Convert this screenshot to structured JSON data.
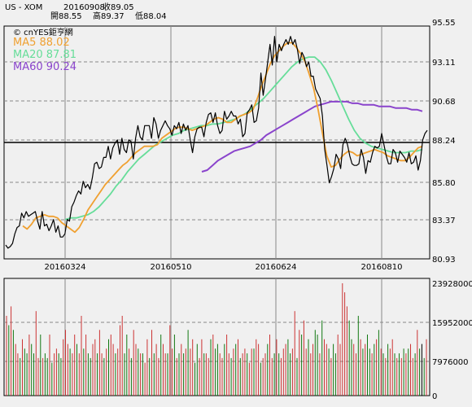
{
  "header": {
    "symbol": "US - XOM",
    "date": "20160908",
    "close_label": "收89.05",
    "open_label": "開88.55",
    "high_label": "高89.37",
    "low_label": "低88.04"
  },
  "brand": "© cnYES鉅亨網",
  "colors": {
    "price": "#000000",
    "ma5": "#f0a030",
    "ma20": "#66dd99",
    "ma60": "#8a44cc",
    "vol_up": "#cc3333",
    "vol_down": "#117711",
    "vol_last": "#000000",
    "grid": "#888888",
    "background": "#f0f0f0"
  },
  "chart_data": [
    {
      "type": "line",
      "title": "",
      "x_tick_labels": [
        "20160324",
        "20160510",
        "20160624",
        "20160810"
      ],
      "ylim": [
        80.93,
        95.55
      ],
      "y_ticks": [
        "95.55",
        "93.11",
        "90.68",
        "88.24",
        "85.80",
        "83.37",
        "80.93"
      ],
      "legend": [
        {
          "name": "MA5",
          "value": "88.02",
          "text": "MA5 88.02"
        },
        {
          "name": "MA20",
          "value": "87.81",
          "text": "MA20 87.81"
        },
        {
          "name": "MA60",
          "value": "90.24",
          "text": "MA60 90.24"
        }
      ],
      "reference_line": 88.24,
      "price_series": [
        81.8,
        81.6,
        81.7,
        81.9,
        82.5,
        82.9,
        83.0,
        83.8,
        83.5,
        83.9,
        83.6,
        83.7,
        83.8,
        83.9,
        83.3,
        82.8,
        83.9,
        83.0,
        83.1,
        82.7,
        83.0,
        83.4,
        82.6,
        83.0,
        82.3,
        82.3,
        82.5,
        83.4,
        83.3,
        84.2,
        84.5,
        84.9,
        85.2,
        85.0,
        85.8,
        85.4,
        85.6,
        85.3,
        86.0,
        86.9,
        87.0,
        86.6,
        86.7,
        87.3,
        87.3,
        88.0,
        87.2,
        87.9,
        88.2,
        88.4,
        87.5,
        88.5,
        87.8,
        87.6,
        88.4,
        88.3,
        87.2,
        88.5,
        89.3,
        88.6,
        88.4,
        89.3,
        89.3,
        89.3,
        88.5,
        89.8,
        89.4,
        88.5,
        89.0,
        89.3,
        89.6,
        89.3,
        89.1,
        88.7,
        89.3,
        89.1,
        89.5,
        88.8,
        89.4,
        89.0,
        89.3,
        88.4,
        87.6,
        88.6,
        89.1,
        89.2,
        89.2,
        88.6,
        89.5,
        90.0,
        90.1,
        89.5,
        90.1,
        89.3,
        88.8,
        89.0,
        90.2,
        89.7,
        89.9,
        90.2,
        89.9,
        89.9,
        89.4,
        89.7,
        88.6,
        88.8,
        90.1,
        90.3,
        90.6,
        89.5,
        89.6,
        90.4,
        92.6,
        91.2,
        92.2,
        93.3,
        94.4,
        93.1,
        94.9,
        93.3,
        94.4,
        94.0,
        94.4,
        94.7,
        94.4,
        94.9,
        94.4,
        94.7,
        94.1,
        93.2,
        93.9,
        93.6,
        93.0,
        93.3,
        92.4,
        92.4,
        91.6,
        91.3,
        91.0,
        89.9,
        87.8,
        86.8,
        85.7,
        86.1,
        86.6,
        87.5,
        87.2,
        86.6,
        88.1,
        88.5,
        88.1,
        87.4,
        86.9,
        86.8,
        86.8,
        86.9,
        87.8,
        87.3,
        86.3,
        87.1,
        87.0,
        87.6,
        88.0,
        87.9,
        88.0,
        88.8,
        88.1,
        87.4,
        86.9,
        86.9,
        87.8,
        87.6,
        87.0,
        87.7,
        87.5,
        87.3,
        87.0,
        87.6,
        86.9,
        87.0,
        87.4,
        86.5,
        87.1,
        88.4,
        88.8,
        89.0
      ],
      "ma5_series": [
        83.0,
        82.8,
        83.1,
        83.5,
        83.6,
        83.7,
        83.6,
        83.6,
        83.5,
        83.2,
        83.0,
        82.8,
        82.6,
        82.9,
        83.4,
        84.0,
        84.4,
        84.8,
        85.2,
        85.6,
        85.9,
        86.2,
        86.5,
        86.8,
        87.0,
        87.3,
        87.6,
        87.8,
        88.0,
        88.0,
        88.0,
        88.1,
        88.5,
        88.7,
        88.9,
        89.1,
        89.2,
        89.2,
        89.1,
        89.0,
        89.1,
        89.2,
        89.3,
        89.5,
        89.7,
        89.8,
        89.7,
        89.5,
        89.5,
        89.7,
        89.9,
        90.0,
        90.1,
        90.3,
        91.0,
        91.8,
        92.5,
        93.2,
        93.7,
        94.0,
        94.3,
        94.5,
        94.5,
        94.2,
        93.8,
        93.3,
        92.5,
        91.6,
        90.3,
        88.8,
        87.4,
        86.7,
        86.8,
        87.2,
        87.5,
        87.7,
        87.6,
        87.4,
        87.5,
        87.6,
        87.7,
        87.8,
        87.7,
        87.6,
        87.4,
        87.3,
        87.2,
        87.1,
        87.1,
        87.3,
        87.6,
        87.9,
        88.0
      ],
      "ma20_series": [
        83.4,
        83.5,
        83.5,
        83.6,
        83.7,
        83.9,
        84.2,
        84.6,
        85.0,
        85.5,
        85.9,
        86.4,
        86.8,
        87.2,
        87.5,
        87.8,
        88.1,
        88.3,
        88.5,
        88.7,
        88.8,
        89.0,
        89.1,
        89.2,
        89.3,
        89.3,
        89.4,
        89.4,
        89.5,
        89.6,
        89.7,
        89.9,
        90.1,
        90.4,
        90.7,
        91.0,
        91.4,
        91.8,
        92.2,
        92.6,
        93.0,
        93.3,
        93.5,
        93.6,
        93.6,
        93.3,
        92.8,
        92.1,
        91.3,
        90.5,
        89.7,
        89.0,
        88.5,
        88.2,
        88.0,
        87.9,
        87.8,
        87.7,
        87.6,
        87.6,
        87.6,
        87.7,
        87.7,
        87.8
      ],
      "ma60_series": [
        86.4,
        86.5,
        86.8,
        87.1,
        87.3,
        87.5,
        87.7,
        87.8,
        87.9,
        88.0,
        88.2,
        88.4,
        88.7,
        88.9,
        89.1,
        89.3,
        89.5,
        89.7,
        89.9,
        90.1,
        90.3,
        90.5,
        90.6,
        90.7,
        90.8,
        90.8,
        90.8,
        90.8,
        90.7,
        90.7,
        90.6,
        90.6,
        90.6,
        90.5,
        90.5,
        90.5,
        90.4,
        90.4,
        90.4,
        90.3,
        90.3,
        90.2
      ]
    },
    {
      "type": "bar",
      "title": "",
      "ylim": [
        0,
        23928000
      ],
      "y_ticks": [
        "23928000",
        "15952000",
        "7976000",
        "0"
      ],
      "volume_values": [
        17000000,
        15000000,
        19000000,
        14000000,
        11000000,
        9000000,
        8000000,
        12000000,
        10000000,
        9000000,
        13000000,
        11000000,
        9000000,
        18000000,
        8000000,
        13000000,
        8000000,
        9000000,
        8000000,
        13000000,
        7000000,
        9000000,
        10000000,
        9000000,
        8000000,
        12000000,
        14000000,
        11000000,
        10000000,
        9000000,
        13000000,
        11000000,
        9000000,
        17000000,
        10000000,
        13000000,
        9000000,
        8000000,
        11000000,
        12000000,
        9000000,
        14000000,
        9000000,
        8000000,
        10000000,
        12000000,
        13000000,
        11000000,
        9000000,
        10000000,
        15000000,
        17000000,
        9000000,
        13000000,
        10000000,
        8000000,
        14000000,
        11000000,
        10000000,
        9000000,
        9000000,
        7000000,
        12000000,
        8000000,
        14000000,
        9000000,
        11000000,
        8000000,
        13000000,
        11000000,
        9000000,
        9000000,
        15000000,
        10000000,
        13000000,
        8000000,
        9000000,
        11000000,
        9000000,
        10000000,
        14000000,
        10000000,
        12000000,
        7000000,
        11000000,
        8000000,
        12000000,
        9000000,
        9000000,
        8000000,
        12000000,
        13000000,
        10000000,
        11000000,
        9000000,
        8000000,
        11000000,
        13000000,
        9000000,
        8000000,
        10000000,
        11000000,
        12000000,
        8000000,
        9000000,
        10000000,
        9000000,
        7000000,
        10000000,
        10000000,
        12000000,
        11000000,
        7000000,
        8000000,
        9000000,
        11000000,
        13000000,
        8000000,
        9000000,
        12000000,
        9000000,
        8000000,
        10000000,
        11000000,
        12000000,
        9000000,
        10000000,
        18000000,
        8000000,
        14000000,
        13000000,
        16000000,
        10000000,
        12000000,
        9000000,
        11000000,
        14000000,
        13000000,
        9000000,
        16000000,
        12000000,
        11000000,
        10000000,
        8000000,
        11000000,
        9000000,
        13000000,
        11000000,
        24000000,
        22000000,
        19000000,
        16000000,
        12000000,
        11000000,
        9000000,
        17000000,
        12000000,
        10000000,
        11000000,
        13000000,
        10000000,
        9000000,
        11000000,
        12000000,
        14000000,
        10000000,
        9000000,
        8000000,
        11000000,
        10000000,
        12000000,
        9000000,
        8000000,
        9000000,
        8000000,
        10000000,
        9000000,
        10000000,
        11000000,
        8000000,
        9000000,
        14000000,
        10000000,
        11000000,
        8000000,
        12000000
      ],
      "volume_up": [
        1,
        0,
        1,
        0,
        1,
        1,
        0,
        1,
        0,
        0,
        1,
        0,
        0,
        1,
        1,
        0,
        1,
        0,
        0,
        1,
        0,
        1,
        1,
        0,
        0,
        1,
        1,
        1,
        0,
        1,
        1,
        0,
        1,
        1,
        0,
        1,
        0,
        0,
        1,
        1,
        0,
        1,
        1,
        0,
        1,
        0,
        1,
        1,
        0,
        1,
        1,
        1,
        0,
        0,
        1,
        0,
        1,
        1,
        0,
        1,
        0,
        1,
        1,
        0,
        1,
        0,
        1,
        1,
        0,
        1,
        1,
        0,
        1,
        1,
        0,
        1,
        0,
        1,
        0,
        1,
        0,
        1,
        1,
        0,
        0,
        1,
        1,
        0,
        1,
        1,
        0,
        1,
        0,
        0,
        1,
        1,
        0,
        1,
        1,
        0,
        1,
        0,
        1,
        0,
        1,
        1,
        0,
        1,
        1,
        0,
        1,
        1,
        0,
        1,
        1,
        0,
        1,
        1,
        0,
        1,
        0,
        1,
        1,
        1,
        0,
        0,
        1,
        1,
        0,
        1,
        0,
        1,
        1,
        0,
        1,
        1,
        0,
        0,
        1,
        0,
        1,
        1,
        0,
        1,
        0,
        0,
        1,
        1,
        1,
        1,
        1,
        0,
        0,
        1,
        1,
        0,
        1,
        0,
        1,
        0,
        0,
        1,
        0,
        1,
        0,
        1,
        0,
        1,
        0,
        1,
        1,
        0,
        1,
        0,
        1,
        0,
        1,
        0,
        1,
        1,
        0,
        1,
        0,
        1,
        0,
        1
      ]
    }
  ]
}
